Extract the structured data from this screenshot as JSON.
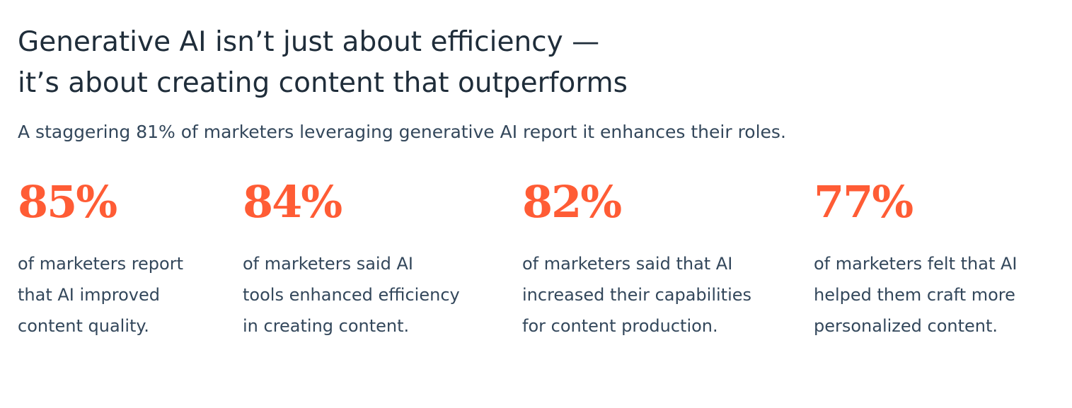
{
  "header": {
    "title_lines": [
      "Generative AI isn’t just about efficiency —",
      "it’s about creating content that outperforms"
    ],
    "subtitle": "A staggering 81% of marketers leveraging generative AI report it enhances their roles."
  },
  "stats": [
    {
      "value": "85%",
      "description_lines": [
        "of marketers report",
        "that AI improved",
        "content quality."
      ]
    },
    {
      "value": "84%",
      "description_lines": [
        "of marketers said AI",
        "tools enhanced efficiency",
        "in creating content."
      ]
    },
    {
      "value": "82%",
      "description_lines": [
        "of marketers said that AI",
        "increased their capabilities",
        "for content production."
      ]
    },
    {
      "value": "77%",
      "description_lines": [
        "of marketers felt that AI",
        "helped them craft more",
        "personalized content."
      ]
    }
  ]
}
